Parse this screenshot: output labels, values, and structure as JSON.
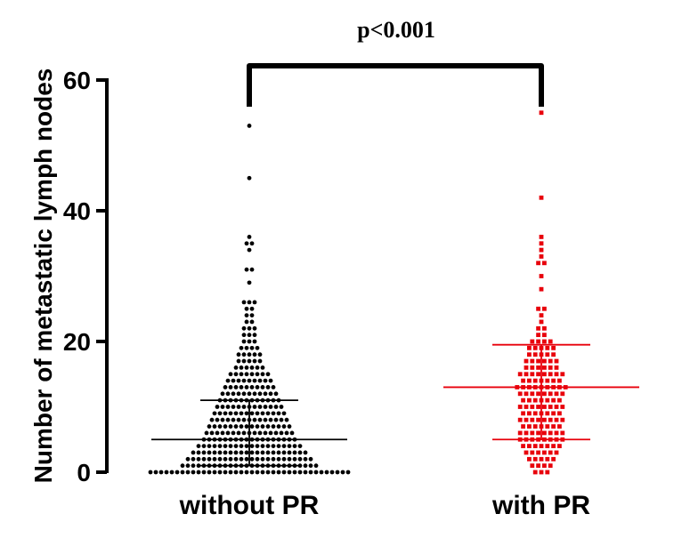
{
  "chart_data": {
    "type": "scatter",
    "title": "",
    "xlabel": "",
    "ylabel": "Number of metastatic lymph nodes",
    "ylim": [
      0,
      62
    ],
    "yticks": [
      0,
      20,
      40,
      60
    ],
    "categories": [
      "without PR",
      "with PR"
    ],
    "annotation": "p<0.001",
    "series": [
      {
        "category": "without PR",
        "color": "#000000",
        "marker": "circle",
        "median": 5,
        "iqr": [
          1,
          11
        ],
        "highlighted_points": [
          53,
          45,
          36,
          35,
          34,
          31,
          29,
          26,
          25,
          24
        ],
        "bin_counts": {
          "0": 38,
          "1": 26,
          "2": 24,
          "3": 22,
          "4": 20,
          "5": 18,
          "6": 17,
          "7": 16,
          "8": 15,
          "9": 14,
          "10": 13,
          "11": 12,
          "12": 11,
          "13": 10,
          "14": 9,
          "15": 8,
          "16": 6,
          "17": 5,
          "18": 5,
          "19": 4,
          "20": 3,
          "21": 3,
          "22": 3,
          "23": 2,
          "24": 2,
          "25": 2,
          "26": 3,
          "29": 1,
          "31": 2,
          "34": 1,
          "35": 2,
          "36": 1,
          "45": 1,
          "53": 1
        }
      },
      {
        "category": "with PR",
        "color": "#e8000b",
        "marker": "square",
        "median": 13,
        "iqr": [
          5,
          19.5
        ],
        "highlighted_points": [
          55,
          42,
          36,
          35,
          34,
          33,
          32,
          30,
          28,
          25
        ],
        "bin_counts": {
          "0": 3,
          "1": 4,
          "2": 5,
          "3": 6,
          "4": 7,
          "5": 8,
          "6": 8,
          "7": 7,
          "8": 8,
          "9": 7,
          "10": 8,
          "11": 7,
          "12": 8,
          "13": 9,
          "14": 7,
          "15": 8,
          "16": 6,
          "17": 6,
          "18": 5,
          "19": 5,
          "20": 4,
          "21": 2,
          "22": 2,
          "23": 1,
          "24": 1,
          "25": 2,
          "28": 1,
          "30": 1,
          "32": 2,
          "33": 1,
          "34": 1,
          "35": 1,
          "36": 1,
          "42": 1,
          "55": 1
        }
      }
    ]
  }
}
